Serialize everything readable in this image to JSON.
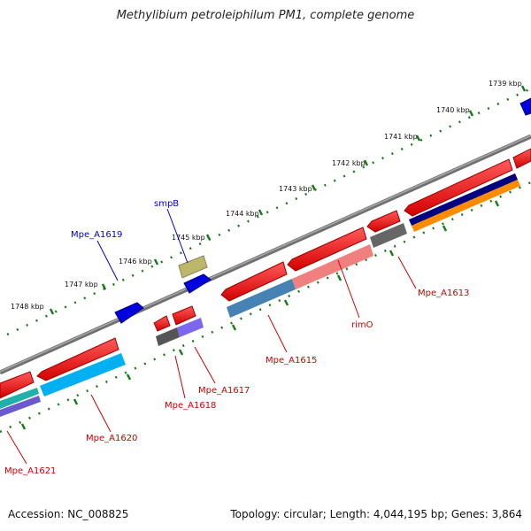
{
  "title": "Methylibium petroleiphilum PM1, complete genome",
  "footer": {
    "accession": "Accession: NC_008825",
    "summary": "Topology: circular; Length: 4,044,195 bp; Genes: 3,864"
  },
  "colors": {
    "backbone": "#808080",
    "tick": "#1a7a1a",
    "forward_label": "#0000cc",
    "reverse_label": "#cc0000"
  },
  "scale_labels": [
    "1739 kbp",
    "1740 kbp",
    "1741 kbp",
    "1742 kbp",
    "1743 kbp",
    "1744 kbp",
    "1745 kbp",
    "1746 kbp",
    "1747 kbp",
    "1748 kbp"
  ],
  "gene_labels": {
    "smpB": "smpB",
    "mpe_a1619": "Mpe_A1619",
    "mpe_a1613": "Mpe_A1613",
    "rimO": "rimO",
    "mpe_a1615": "Mpe_A1615",
    "mpe_a1617": "Mpe_A1617",
    "mpe_a1618": "Mpe_A1618",
    "mpe_a1620": "Mpe_A1620",
    "mpe_a1621": "Mpe_A1621"
  }
}
